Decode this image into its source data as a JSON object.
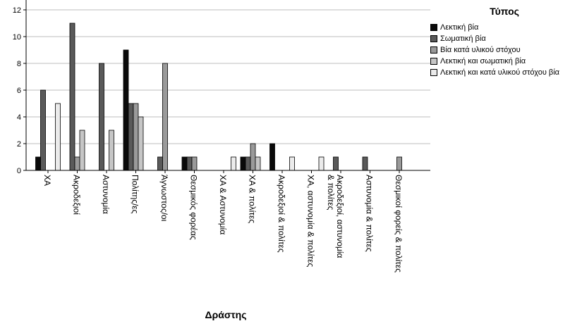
{
  "chart_data": {
    "type": "bar",
    "xlabel": "Δράστης",
    "ylabel": "",
    "ylim": [
      0,
      12
    ],
    "yticks": [
      0,
      2,
      4,
      6,
      8,
      10,
      12
    ],
    "grid": "horizontal",
    "legend_title": "Τύπος",
    "legend_position": "top-right",
    "categories": [
      "ΧΑ",
      "Ακροδεξιοί",
      "Αστυνομία",
      "Πολίτης/ες",
      "Άγνωστος/οι",
      "Θεσμικός φορέας",
      "ΧΑ & Αστυνομία",
      "ΧΑ & πολίτες",
      "Ακροδεξιοί & πολίτες",
      "ΧΑ, αστυνομία & πολίτες",
      "Ακροδεξιοί, αστυνομία & πολίτες",
      "Αστυνομία & πολίτες",
      "Θεσμικοί φορείς & πολίτες"
    ],
    "series": [
      {
        "name": "Λεκτική βία",
        "color": "#0a0a0a",
        "values": [
          1,
          0,
          0,
          9,
          0,
          1,
          0,
          1,
          2,
          0,
          0,
          0,
          0
        ]
      },
      {
        "name": "Σωματική βία",
        "color": "#5a5a5a",
        "values": [
          6,
          11,
          8,
          5,
          1,
          1,
          0,
          1,
          0,
          0,
          1,
          1,
          0
        ]
      },
      {
        "name": "Βία κατά υλικού στόχου",
        "color": "#9a9a9a",
        "values": [
          0,
          1,
          0,
          5,
          8,
          1,
          0,
          2,
          0,
          0,
          0,
          0,
          1
        ]
      },
      {
        "name": "Λεκτική και σωματική βία",
        "color": "#c6c6c6",
        "values": [
          0,
          3,
          3,
          4,
          0,
          0,
          0,
          1,
          0,
          0,
          0,
          0,
          0
        ]
      },
      {
        "name": "Λεκτική και κατά υλικού στόχου βία",
        "color": "#ebebeb",
        "values": [
          5,
          0,
          0,
          0,
          0,
          0,
          1,
          0,
          1,
          1,
          0,
          0,
          0
        ]
      }
    ]
  }
}
